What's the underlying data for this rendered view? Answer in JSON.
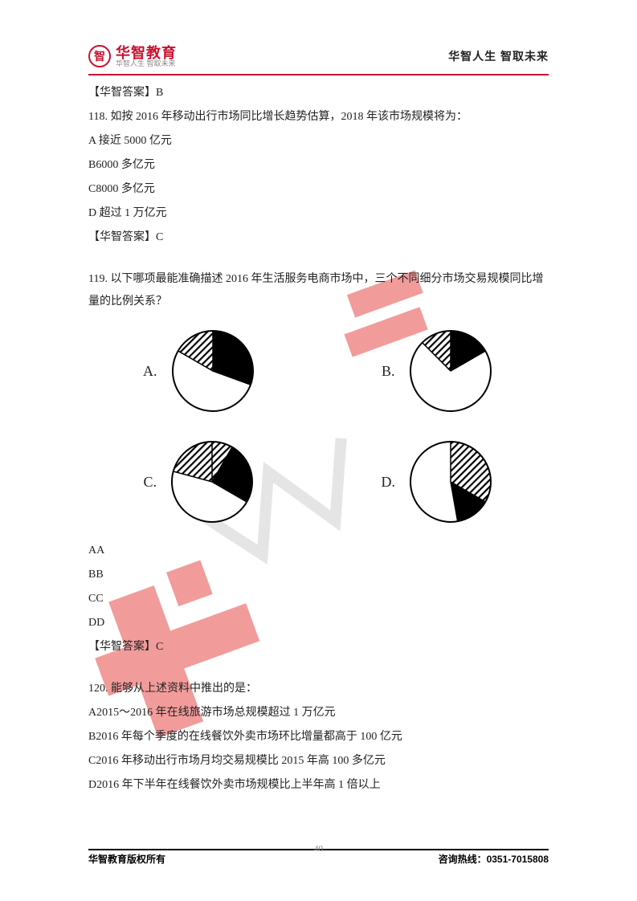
{
  "header": {
    "logo_char": "智",
    "logo_main": "华智教育",
    "logo_sub": "华智人生 智取未来",
    "slogan": "华智人生 智取未来"
  },
  "colors": {
    "brand_red": "#c8102e",
    "text": "#222222",
    "watermark": "#e94b4b"
  },
  "q117_answer_line": "【华智答案】B",
  "q118": {
    "stem": "118. 如按 2016 年移动出行市场同比增长趋势估算，2018 年该市场规模将为：",
    "opt_a": "A 接近 5000 亿元",
    "opt_b": "B6000 多亿元",
    "opt_c": "C8000 多亿元",
    "opt_d": "D 超过 1 万亿元",
    "answer": "【华智答案】C"
  },
  "q119": {
    "stem": "119. 以下哪项最能准确描述 2016 年生活服务电商市场中，三个不同细分市场交易规模同比增量的比例关系？",
    "charts": {
      "A": {
        "label": "A.",
        "type": "pie",
        "slices": [
          {
            "fill": "white",
            "start": 40,
            "end": 300
          },
          {
            "fill": "hatch",
            "start": 300,
            "end": 360
          },
          {
            "fill": "black",
            "start": 0,
            "end": 40
          },
          {
            "fill": "black",
            "start": 40,
            "end": 110,
            "only_inner": false
          }
        ],
        "segments": [
          {
            "fill": "hatch",
            "start": 300,
            "end": 360
          },
          {
            "fill": "black",
            "start": 0,
            "end": 110
          },
          {
            "fill": "white",
            "start": 110,
            "end": 300
          }
        ],
        "stroke": "#000000",
        "stroke_width": 2
      },
      "B": {
        "label": "B.",
        "type": "pie",
        "segments": [
          {
            "fill": "hatch",
            "start": 315,
            "end": 360
          },
          {
            "fill": "black",
            "start": 0,
            "end": 60
          },
          {
            "fill": "white",
            "start": 60,
            "end": 315
          }
        ],
        "stroke": "#000000",
        "stroke_width": 2
      },
      "C": {
        "label": "C.",
        "type": "pie",
        "segments": [
          {
            "fill": "hatch",
            "start": 285,
            "end": 360
          },
          {
            "fill": "hatch",
            "start": 0,
            "end": 30
          },
          {
            "fill": "black",
            "start": 30,
            "end": 120
          },
          {
            "fill": "white",
            "start": 120,
            "end": 285
          }
        ],
        "stroke": "#000000",
        "stroke_width": 2
      },
      "D": {
        "label": "D.",
        "type": "pie",
        "segments": [
          {
            "fill": "hatch",
            "start": 0,
            "end": 120
          },
          {
            "fill": "black",
            "start": 120,
            "end": 170
          },
          {
            "fill": "white",
            "start": 170,
            "end": 360
          }
        ],
        "stroke": "#000000",
        "stroke_width": 2
      }
    },
    "opt_aa": "AA",
    "opt_bb": "BB",
    "opt_cc": "CC",
    "opt_dd": "DD",
    "answer": "【华智答案】C"
  },
  "q120": {
    "stem": "120. 能够从上述资料中推出的是：",
    "opt_a": "A2015～2016 年在线旅游市场总规模超过 1 万亿元",
    "opt_b": "B2016 年每个季度的在线餐饮外卖市场环比增量都高于 100 亿元",
    "opt_c": "C2016 年移动出行市场月均交易规模比 2015 年高 100 多亿元",
    "opt_d": "D2016 年下半年在线餐饮外卖市场规模比上半年高 1 倍以上"
  },
  "footer": {
    "page_num": "40",
    "copyright": "华智教育版权所有",
    "hotline_label": "咨询热线：",
    "hotline_num": "0351-7015808"
  }
}
